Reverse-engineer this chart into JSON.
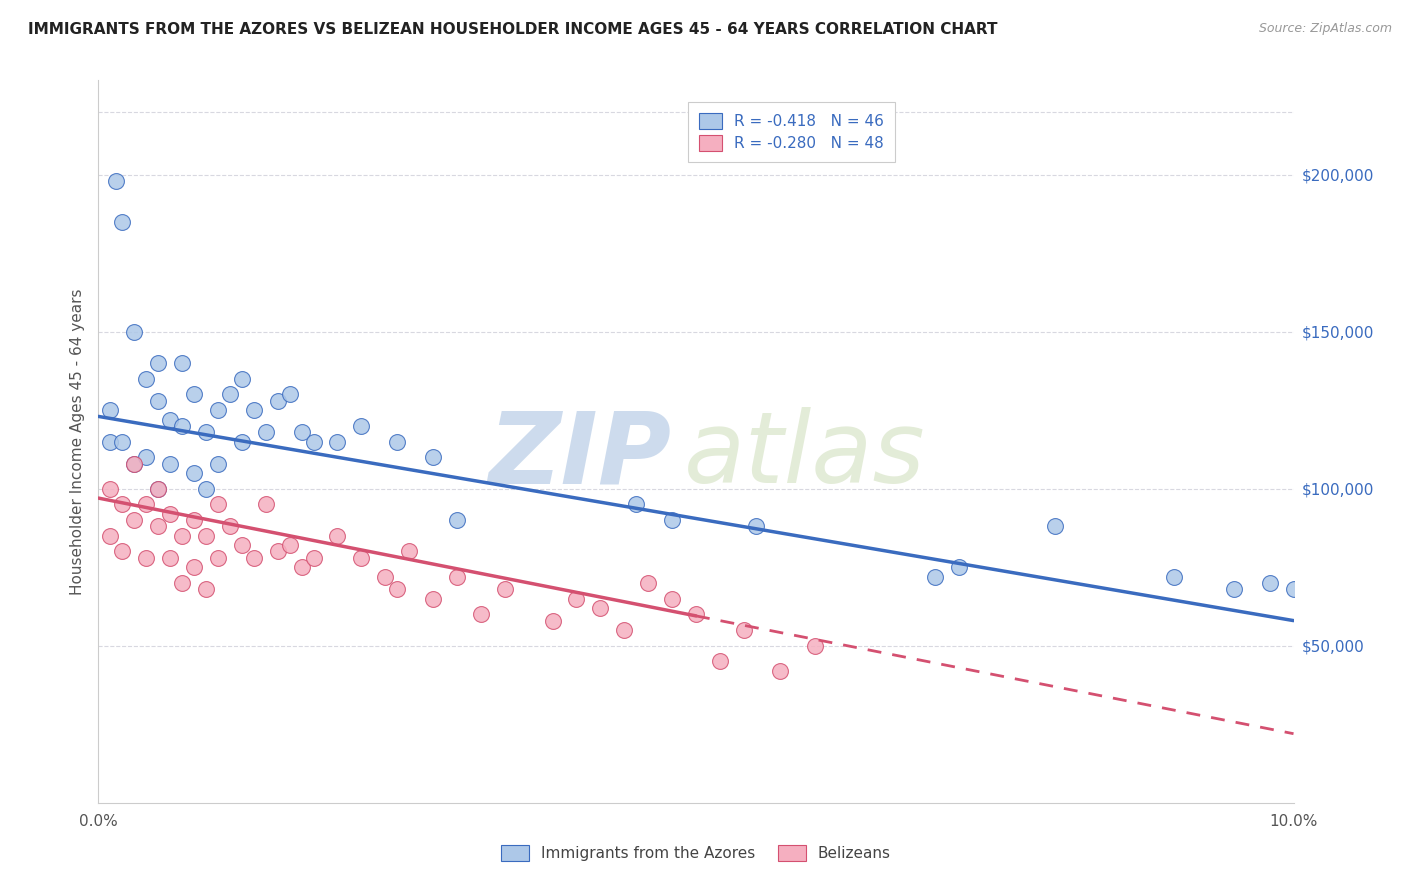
{
  "title": "IMMIGRANTS FROM THE AZORES VS BELIZEAN HOUSEHOLDER INCOME AGES 45 - 64 YEARS CORRELATION CHART",
  "source": "Source: ZipAtlas.com",
  "ylabel": "Householder Income Ages 45 - 64 years",
  "xlim": [
    0.0,
    0.1
  ],
  "ylim": [
    0,
    230000
  ],
  "ytick_right_labels": [
    "$50,000",
    "$100,000",
    "$150,000",
    "$200,000"
  ],
  "ytick_right_values": [
    50000,
    100000,
    150000,
    200000
  ],
  "legend_label1": "Immigrants from the Azores",
  "legend_label2": "Belizeans",
  "R1": "-0.418",
  "N1": "46",
  "R2": "-0.280",
  "N2": "48",
  "color_blue": "#adc8e8",
  "color_blue_line": "#3a6bbf",
  "color_pink": "#f5afc0",
  "color_pink_line": "#d45070",
  "watermark_zip": "ZIP",
  "watermark_atlas": "atlas",
  "blue_line_x0": 0.0,
  "blue_line_y0": 123000,
  "blue_line_x1": 0.1,
  "blue_line_y1": 58000,
  "pink_line_x0": 0.0,
  "pink_line_y0": 97000,
  "pink_line_x1": 0.1,
  "pink_line_y1": 22000,
  "blue_x": [
    0.001,
    0.001,
    0.0015,
    0.002,
    0.002,
    0.003,
    0.003,
    0.004,
    0.004,
    0.005,
    0.005,
    0.005,
    0.006,
    0.006,
    0.007,
    0.007,
    0.008,
    0.008,
    0.009,
    0.009,
    0.01,
    0.01,
    0.011,
    0.012,
    0.012,
    0.013,
    0.014,
    0.015,
    0.016,
    0.017,
    0.018,
    0.02,
    0.022,
    0.025,
    0.028,
    0.03,
    0.045,
    0.048,
    0.055,
    0.07,
    0.072,
    0.08,
    0.09,
    0.095,
    0.098,
    0.1
  ],
  "blue_y": [
    125000,
    115000,
    198000,
    185000,
    115000,
    150000,
    108000,
    135000,
    110000,
    140000,
    128000,
    100000,
    122000,
    108000,
    140000,
    120000,
    130000,
    105000,
    118000,
    100000,
    125000,
    108000,
    130000,
    135000,
    115000,
    125000,
    118000,
    128000,
    130000,
    118000,
    115000,
    115000,
    120000,
    115000,
    110000,
    90000,
    95000,
    90000,
    88000,
    72000,
    75000,
    88000,
    72000,
    68000,
    70000,
    68000
  ],
  "pink_x": [
    0.001,
    0.001,
    0.002,
    0.002,
    0.003,
    0.003,
    0.004,
    0.004,
    0.005,
    0.005,
    0.006,
    0.006,
    0.007,
    0.007,
    0.008,
    0.008,
    0.009,
    0.009,
    0.01,
    0.01,
    0.011,
    0.012,
    0.013,
    0.014,
    0.015,
    0.016,
    0.017,
    0.018,
    0.02,
    0.022,
    0.024,
    0.025,
    0.026,
    0.028,
    0.03,
    0.032,
    0.034,
    0.038,
    0.04,
    0.042,
    0.044,
    0.046,
    0.048,
    0.05,
    0.052,
    0.054,
    0.057,
    0.06
  ],
  "pink_y": [
    100000,
    85000,
    95000,
    80000,
    108000,
    90000,
    95000,
    78000,
    100000,
    88000,
    92000,
    78000,
    85000,
    70000,
    90000,
    75000,
    85000,
    68000,
    95000,
    78000,
    88000,
    82000,
    78000,
    95000,
    80000,
    82000,
    75000,
    78000,
    85000,
    78000,
    72000,
    68000,
    80000,
    65000,
    72000,
    60000,
    68000,
    58000,
    65000,
    62000,
    55000,
    70000,
    65000,
    60000,
    45000,
    55000,
    42000,
    50000
  ]
}
